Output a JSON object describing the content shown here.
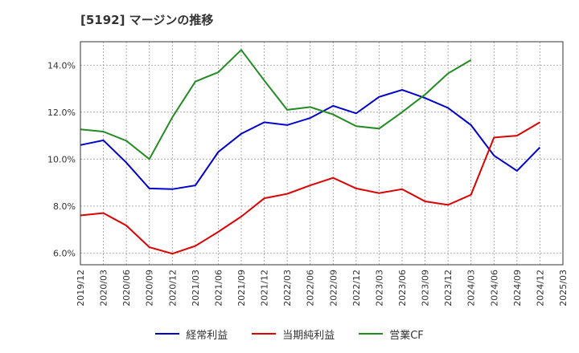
{
  "title": "[5192]  マージンの推移",
  "chart_data": {
    "type": "line",
    "title": "[5192]  マージンの推移",
    "x": [
      "2019/12",
      "2020/03",
      "2020/06",
      "2020/09",
      "2020/12",
      "2021/03",
      "2021/06",
      "2021/09",
      "2021/12",
      "2022/03",
      "2022/06",
      "2022/09",
      "2022/12",
      "2023/03",
      "2023/06",
      "2023/09",
      "2023/12",
      "2024/03",
      "2024/06",
      "2024/09",
      "2024/12",
      "2025/03"
    ],
    "y_ticks": [
      "6.0%",
      "8.0%",
      "10.0%",
      "12.0%",
      "14.0%"
    ],
    "ylim": [
      5.5,
      15.0
    ],
    "grid": true,
    "legend_position": "bottom",
    "series": [
      {
        "name": "経常利益",
        "color": "#0000cc",
        "values": [
          10.6,
          10.8,
          9.85,
          8.75,
          8.72,
          8.88,
          10.3,
          11.08,
          11.57,
          11.45,
          11.75,
          12.27,
          11.95,
          12.65,
          12.95,
          12.6,
          12.18,
          11.45,
          10.15,
          9.5,
          10.5,
          null
        ]
      },
      {
        "name": "当期純利益",
        "color": "#dd0000",
        "values": [
          7.6,
          7.7,
          7.17,
          6.25,
          5.97,
          6.3,
          6.9,
          7.55,
          8.33,
          8.52,
          8.88,
          9.2,
          8.75,
          8.55,
          8.72,
          8.2,
          8.05,
          8.48,
          10.92,
          11.0,
          11.57,
          null
        ]
      },
      {
        "name": "営業CF",
        "color": "#228b22",
        "values": [
          11.27,
          11.17,
          10.78,
          10.0,
          11.78,
          13.3,
          13.7,
          14.65,
          13.35,
          12.1,
          12.22,
          11.9,
          11.4,
          11.3,
          12.0,
          12.75,
          13.65,
          14.22,
          null,
          null,
          null,
          null
        ]
      }
    ]
  }
}
